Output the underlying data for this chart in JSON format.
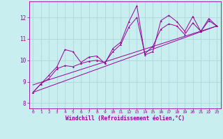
{
  "xlabel": "Windchill (Refroidissement éolien,°C)",
  "background_color": "#c8eef0",
  "grid_color": "#b0d8dc",
  "line_color": "#990099",
  "xlim": [
    -0.5,
    23.5
  ],
  "ylim": [
    7.75,
    12.75
  ],
  "xticks": [
    0,
    1,
    2,
    3,
    4,
    5,
    6,
    7,
    8,
    9,
    10,
    11,
    12,
    13,
    14,
    15,
    16,
    17,
    18,
    19,
    20,
    21,
    22,
    23
  ],
  "yticks": [
    8,
    9,
    10,
    11,
    12
  ],
  "series1": {
    "x": [
      0,
      1,
      2,
      3,
      4,
      5,
      6,
      7,
      8,
      9,
      10,
      11,
      12,
      13,
      14,
      15,
      16,
      17,
      18,
      19,
      20,
      21,
      22,
      23
    ],
    "y": [
      8.5,
      8.9,
      9.3,
      9.7,
      10.5,
      10.4,
      9.9,
      10.15,
      10.2,
      9.85,
      10.55,
      10.85,
      11.8,
      12.55,
      10.25,
      10.4,
      11.85,
      12.1,
      11.8,
      11.35,
      12.05,
      11.35,
      11.95,
      11.6
    ]
  },
  "series2": {
    "x": [
      0,
      1,
      2,
      3,
      4,
      5,
      6,
      7,
      8,
      9,
      10,
      11,
      12,
      13,
      14,
      15,
      16,
      17,
      18,
      19,
      20,
      21,
      22,
      23
    ],
    "y": [
      8.5,
      8.9,
      9.15,
      9.6,
      9.75,
      9.7,
      9.85,
      9.95,
      10.0,
      9.9,
      10.4,
      10.75,
      11.55,
      12.0,
      10.3,
      10.65,
      11.45,
      11.7,
      11.6,
      11.2,
      11.75,
      11.35,
      11.85,
      11.6
    ]
  },
  "series3_linear": {
    "x": [
      0,
      23
    ],
    "y": [
      8.5,
      11.6
    ]
  },
  "series4_linear": {
    "x": [
      0,
      23
    ],
    "y": [
      8.85,
      11.6
    ]
  },
  "marker_size": 2.0,
  "line_width": 0.7
}
